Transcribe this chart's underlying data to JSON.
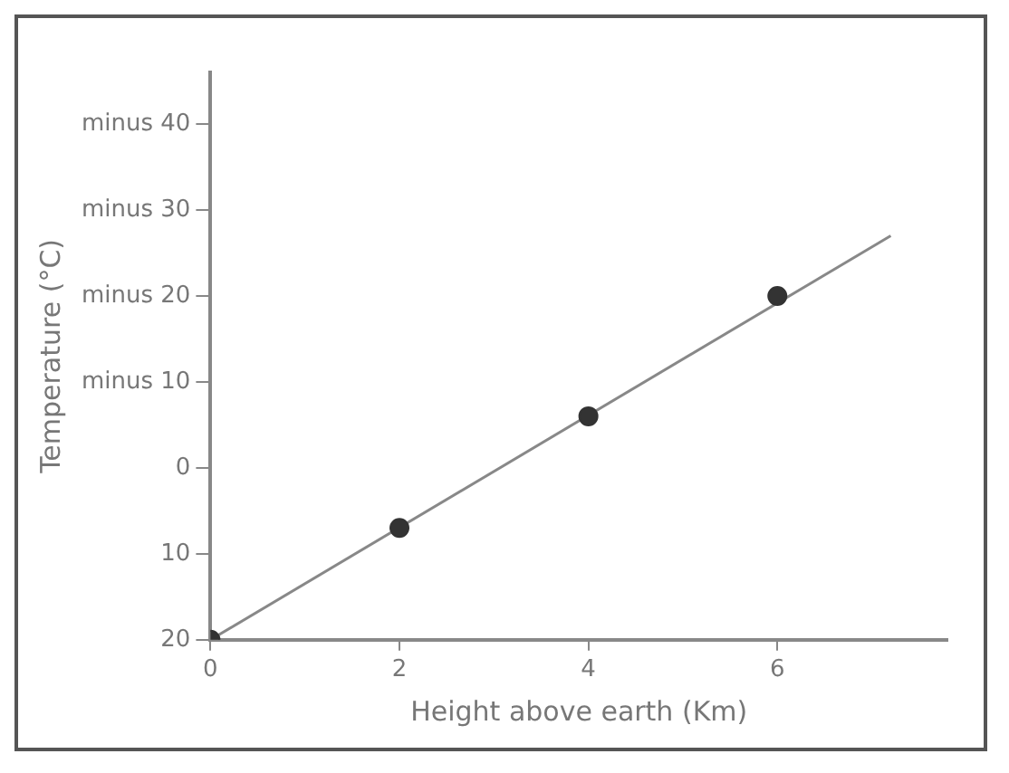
{
  "chart_data": {
    "type": "scatter",
    "xlabel": "Height above earth (Km)",
    "ylabel": "Temperature (°C)",
    "series": [
      {
        "type": "scatter",
        "x": [
          0,
          2,
          4,
          6
        ],
        "values": [
          20,
          7,
          -6,
          -20
        ],
        "color": "#333333",
        "marker": "circle"
      },
      {
        "type": "line",
        "x": [
          0,
          7.2
        ],
        "values": [
          20,
          -27
        ],
        "color": "#888888",
        "marker": "none"
      }
    ],
    "xlim": [
      0,
      7.8
    ],
    "xticks": [
      0,
      2,
      4,
      6
    ],
    "ylim": [
      20,
      -46
    ],
    "yticks": [
      20,
      10,
      0,
      {
        "value": -10,
        "label": "minus 10"
      },
      {
        "value": -20,
        "label": "minus 20"
      },
      {
        "value": -30,
        "label": "minus 30"
      },
      {
        "value": -40,
        "label": "minus 40"
      }
    ],
    "grid": false,
    "legend": false
  }
}
